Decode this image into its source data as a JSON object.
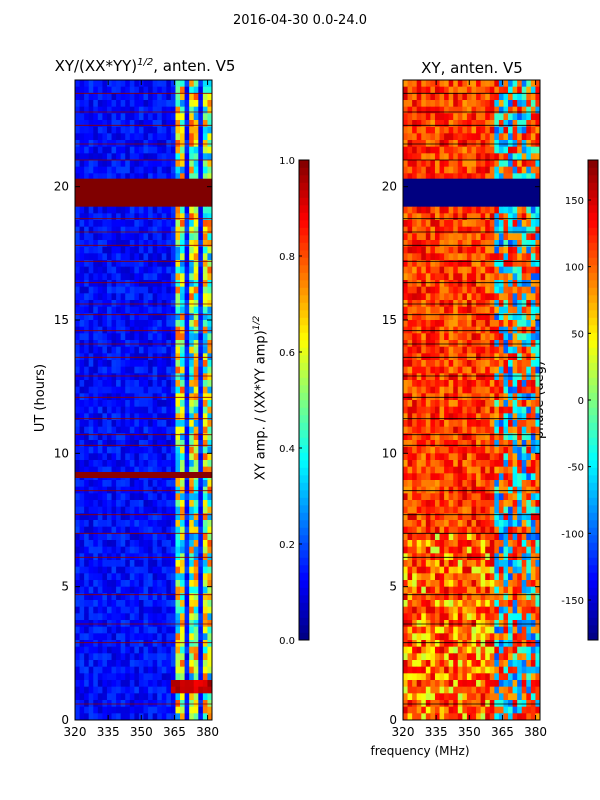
{
  "suptitle": "2016-04-30 0.0-24.0",
  "xlabel": "frequency (MHz)",
  "chart_data": [
    {
      "type": "heatmap",
      "title": "XY/(XX*YY)^1/2, anten. V5",
      "title_main": "XY/(XX*YY)",
      "title_sup": "1/2",
      "title_tail": ", anten. V5",
      "ylabel": "UT (hours)",
      "x_ticks": [
        "320",
        "335",
        "350",
        "365",
        "380"
      ],
      "x_tick_values": [
        320,
        335,
        350,
        365,
        380
      ],
      "xlim": [
        320,
        382
      ],
      "y_ticks": [
        "0",
        "5",
        "10",
        "15",
        "20"
      ],
      "y_tick_values": [
        0,
        5,
        10,
        15,
        20
      ],
      "ylim": [
        0,
        24
      ],
      "colormap": "jet",
      "colorbar_label": "XY amp. / (XX*YY amp)^1/2",
      "colorbar_label_main": "XY amp. / (XX*YY amp)",
      "colorbar_label_sup": "1/2",
      "colorbar_ticks": [
        "0.0",
        "0.2",
        "0.4",
        "0.6",
        "0.8",
        "1.0"
      ],
      "colorbar_tick_values": [
        0.0,
        0.2,
        0.4,
        0.6,
        0.8,
        1.0
      ],
      "colorbar_range": [
        0.0,
        1.0
      ],
      "flagged_band_hours": [
        19.3,
        20.3
      ],
      "flagged_band_value": 1.0,
      "bright_band_hours": [
        1.0,
        1.6
      ],
      "active_freq_start_mhz": 363
    },
    {
      "type": "heatmap",
      "title": "XY, anten. V5",
      "x_ticks": [
        "320",
        "335",
        "350",
        "365",
        "380"
      ],
      "x_tick_values": [
        320,
        335,
        350,
        365,
        380
      ],
      "xlim": [
        320,
        382
      ],
      "y_ticks": [
        "0",
        "5",
        "10",
        "15",
        "20"
      ],
      "y_tick_values": [
        0,
        5,
        10,
        15,
        20
      ],
      "ylim": [
        0,
        24
      ],
      "colormap": "jet",
      "colorbar_label": "phase (deg)",
      "colorbar_ticks": [
        "-150",
        "-100",
        "-50",
        "0",
        "50",
        "100",
        "150"
      ],
      "colorbar_tick_values": [
        -150,
        -100,
        -50,
        0,
        50,
        100,
        150
      ],
      "colorbar_range": [
        -180,
        180
      ],
      "flagged_band_hours": [
        19.3,
        20.3
      ],
      "flagged_band_value": -180
    }
  ]
}
